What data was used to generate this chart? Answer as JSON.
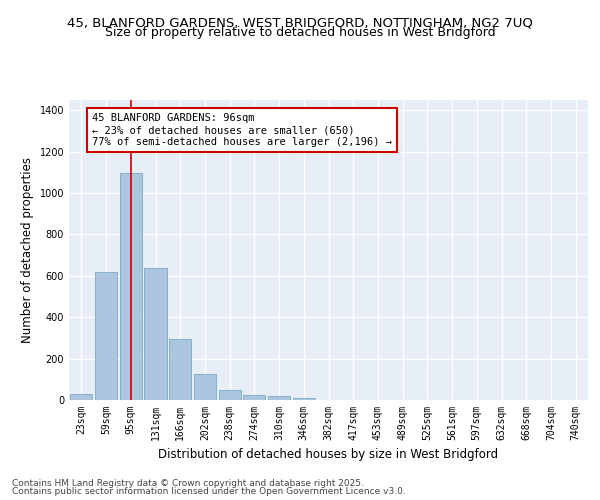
{
  "title_line1": "45, BLANFORD GARDENS, WEST BRIDGFORD, NOTTINGHAM, NG2 7UQ",
  "title_line2": "Size of property relative to detached houses in West Bridgford",
  "xlabel": "Distribution of detached houses by size in West Bridgford",
  "ylabel": "Number of detached properties",
  "categories": [
    "23sqm",
    "59sqm",
    "95sqm",
    "131sqm",
    "166sqm",
    "202sqm",
    "238sqm",
    "274sqm",
    "310sqm",
    "346sqm",
    "382sqm",
    "417sqm",
    "453sqm",
    "489sqm",
    "525sqm",
    "561sqm",
    "597sqm",
    "632sqm",
    "668sqm",
    "704sqm",
    "740sqm"
  ],
  "values": [
    30,
    620,
    1095,
    640,
    295,
    125,
    48,
    25,
    20,
    10,
    0,
    0,
    0,
    0,
    0,
    0,
    0,
    0,
    0,
    0,
    0
  ],
  "bar_color": "#adc6e0",
  "bar_edge_color": "#7aaac8",
  "background_color": "#e8eef8",
  "grid_color": "#ffffff",
  "vline_x_index": 2,
  "vline_color": "#cc0000",
  "annotation_text": "45 BLANFORD GARDENS: 96sqm\n← 23% of detached houses are smaller (650)\n77% of semi-detached houses are larger (2,196) →",
  "annotation_box_color": "#cc0000",
  "ylim": [
    0,
    1450
  ],
  "yticks": [
    0,
    200,
    400,
    600,
    800,
    1000,
    1200,
    1400
  ],
  "footer_line1": "Contains HM Land Registry data © Crown copyright and database right 2025.",
  "footer_line2": "Contains public sector information licensed under the Open Government Licence v3.0.",
  "title_fontsize": 9.5,
  "subtitle_fontsize": 9,
  "axis_label_fontsize": 8.5,
  "tick_fontsize": 7,
  "annotation_fontsize": 7.5,
  "footer_fontsize": 6.5
}
